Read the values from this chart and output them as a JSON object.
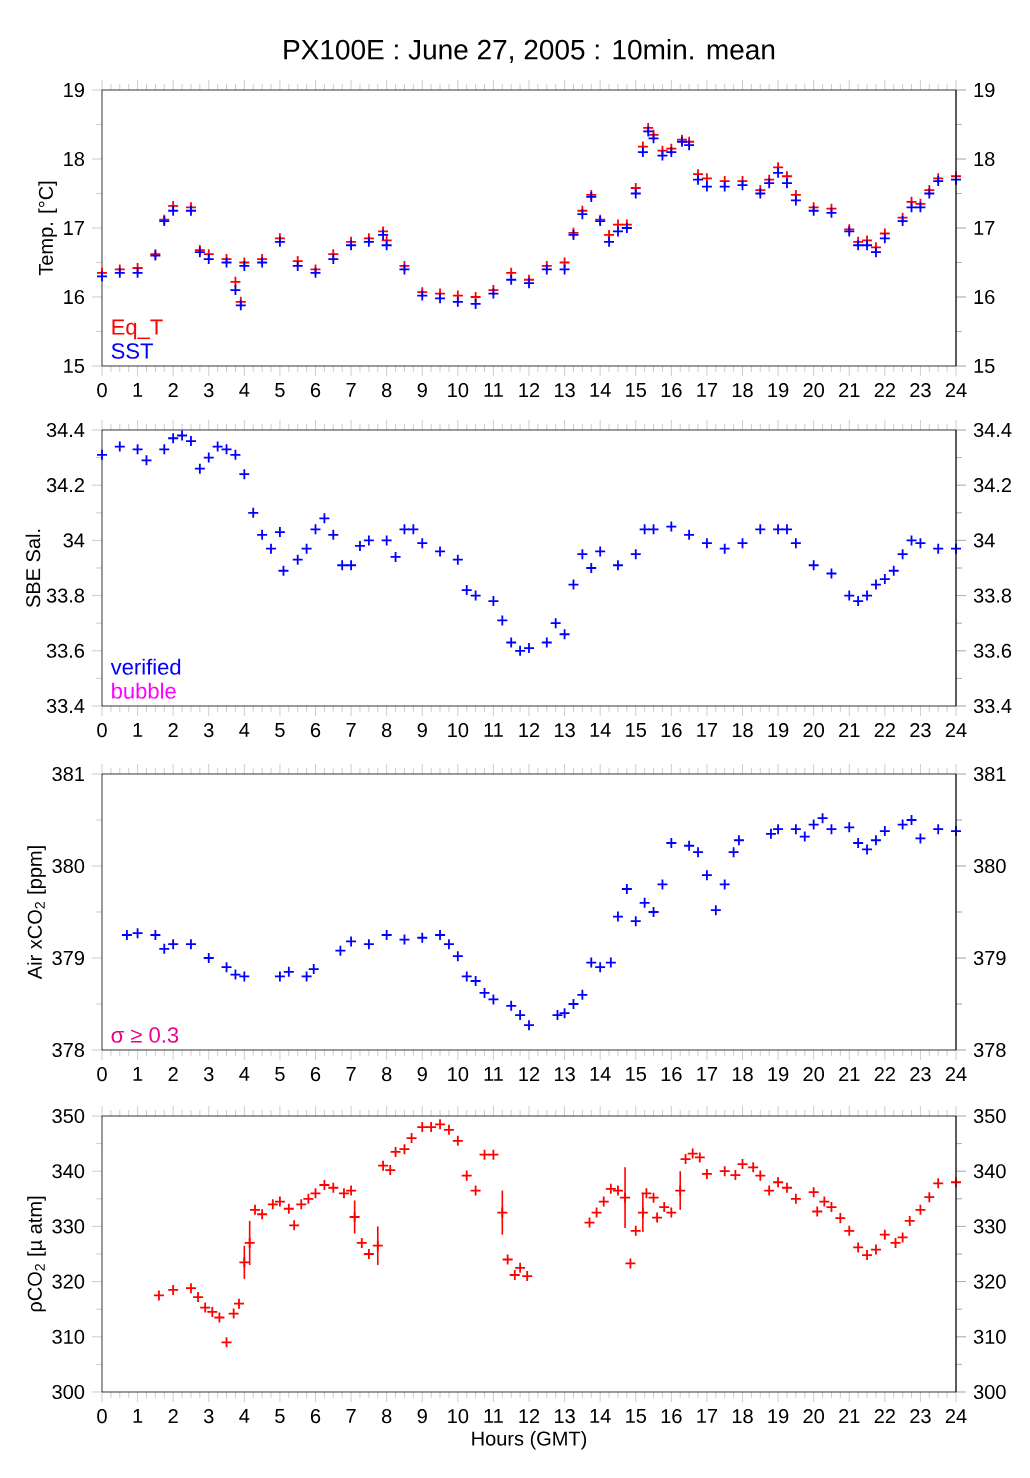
{
  "chart_data": [
    {
      "type": "scatter",
      "title": "PX100E : June 27, 2005 : 10min. mean",
      "ylabel": "Temp. [°C]",
      "marker": "cross",
      "legend": "bottom left",
      "xlim": [
        0,
        24
      ],
      "xticks": [
        0,
        1,
        2,
        3,
        4,
        5,
        6,
        7,
        8,
        9,
        10,
        11,
        12,
        13,
        14,
        15,
        16,
        17,
        18,
        19,
        20,
        21,
        22,
        23,
        24
      ],
      "ylim": [
        15,
        19
      ],
      "yticks": [
        15,
        16,
        17,
        18,
        19
      ],
      "y2lim": [
        15,
        19
      ],
      "y2ticks": [
        15,
        16,
        17,
        18,
        19
      ],
      "series": [
        {
          "name": "Eq_T",
          "color": "#ff0000",
          "x": [
            0,
            0.5,
            1,
            1.5,
            1.75,
            2,
            2.5,
            2.75,
            3,
            3.5,
            3.75,
            3.9,
            4,
            4.5,
            5,
            5.5,
            6,
            6.5,
            7,
            7.5,
            7.9,
            8,
            8.5,
            9,
            9.5,
            10,
            10.5,
            11,
            11.5,
            12,
            12.5,
            13,
            13.25,
            13.5,
            13.75,
            14,
            14.25,
            14.5,
            14.75,
            15,
            15.2,
            15.35,
            15.5,
            15.75,
            16,
            16.3,
            16.5,
            16.75,
            17,
            17.5,
            18,
            18.5,
            18.75,
            19,
            19.25,
            19.5,
            20,
            20.5,
            21,
            21.25,
            21.5,
            21.75,
            22,
            22.5,
            22.75,
            23,
            23.25,
            23.5,
            24
          ],
          "values": [
            16.35,
            16.4,
            16.42,
            16.62,
            17.12,
            17.32,
            17.3,
            16.68,
            16.62,
            16.55,
            16.22,
            15.93,
            16.5,
            16.55,
            16.85,
            16.52,
            16.4,
            16.62,
            16.8,
            16.85,
            16.95,
            16.82,
            16.45,
            16.07,
            16.05,
            16.02,
            16.0,
            16.1,
            16.35,
            16.25,
            16.45,
            16.5,
            16.93,
            17.25,
            17.48,
            17.12,
            16.9,
            17.05,
            17.05,
            17.58,
            18.18,
            18.45,
            18.35,
            18.12,
            18.15,
            18.28,
            18.25,
            17.78,
            17.72,
            17.68,
            17.68,
            17.55,
            17.7,
            17.88,
            17.75,
            17.48,
            17.3,
            17.28,
            16.98,
            16.8,
            16.82,
            16.72,
            16.92,
            17.15,
            17.38,
            17.35,
            17.55,
            17.72,
            17.75
          ]
        },
        {
          "name": "SST",
          "color": "#0000ff",
          "x": [
            0,
            0.5,
            1,
            1.5,
            1.75,
            2,
            2.5,
            2.75,
            3,
            3.5,
            3.75,
            3.9,
            4,
            4.5,
            5,
            5.5,
            6,
            6.5,
            7,
            7.5,
            7.9,
            8,
            8.5,
            9,
            9.5,
            10,
            10.5,
            11,
            11.5,
            12,
            12.5,
            13,
            13.25,
            13.5,
            13.75,
            14,
            14.25,
            14.5,
            14.75,
            15,
            15.2,
            15.35,
            15.5,
            15.75,
            16,
            16.3,
            16.5,
            16.75,
            17,
            17.5,
            18,
            18.5,
            18.75,
            19,
            19.25,
            19.5,
            20,
            20.5,
            21,
            21.25,
            21.5,
            21.75,
            22,
            22.5,
            22.75,
            23,
            23.25,
            23.5,
            24
          ],
          "values": [
            16.3,
            16.35,
            16.35,
            16.6,
            17.1,
            17.25,
            17.25,
            16.65,
            16.55,
            16.5,
            16.1,
            15.88,
            16.45,
            16.5,
            16.8,
            16.45,
            16.35,
            16.55,
            16.75,
            16.8,
            16.9,
            16.75,
            16.4,
            16.02,
            15.98,
            15.93,
            15.9,
            16.05,
            16.25,
            16.2,
            16.4,
            16.4,
            16.9,
            17.2,
            17.45,
            17.1,
            16.8,
            16.95,
            17.0,
            17.5,
            18.1,
            18.4,
            18.3,
            18.05,
            18.1,
            18.25,
            18.2,
            17.7,
            17.6,
            17.6,
            17.62,
            17.5,
            17.65,
            17.8,
            17.65,
            17.4,
            17.25,
            17.22,
            16.95,
            16.75,
            16.75,
            16.65,
            16.85,
            17.1,
            17.3,
            17.3,
            17.5,
            17.68,
            17.7
          ]
        }
      ]
    },
    {
      "type": "scatter",
      "ylabel": "SBE Sal.",
      "marker": "cross",
      "legend": "bottom left",
      "xlim": [
        0,
        24
      ],
      "xticks": [
        0,
        1,
        2,
        3,
        4,
        5,
        6,
        7,
        8,
        9,
        10,
        11,
        12,
        13,
        14,
        15,
        16,
        17,
        18,
        19,
        20,
        21,
        22,
        23,
        24
      ],
      "ylim": [
        33.4,
        34.4
      ],
      "yticks": [
        33.4,
        33.6,
        33.8,
        34,
        34.2,
        34.4
      ],
      "y2lim": [
        33.4,
        34.4
      ],
      "y2ticks": [
        33.4,
        33.6,
        33.8,
        34,
        34.2,
        34.4
      ],
      "series": [
        {
          "name": "verified",
          "color": "#0000ff",
          "x": [
            0,
            0.5,
            1,
            1.25,
            1.75,
            2,
            2.25,
            2.5,
            2.75,
            3,
            3.25,
            3.5,
            3.75,
            4,
            4.25,
            4.5,
            4.75,
            5,
            5.1,
            5.5,
            5.75,
            6,
            6.25,
            6.5,
            6.75,
            7,
            7.25,
            7.5,
            8,
            8.25,
            8.5,
            8.75,
            9,
            9.5,
            10,
            10.25,
            10.5,
            11,
            11.25,
            11.5,
            11.75,
            12,
            12.5,
            12.75,
            13,
            13.25,
            13.5,
            13.75,
            14,
            14.5,
            15,
            15.25,
            15.5,
            16,
            16.5,
            17,
            17.5,
            18,
            18.5,
            19,
            19.25,
            19.5,
            20,
            20.5,
            21,
            21.25,
            21.5,
            21.75,
            22,
            22.25,
            22.5,
            22.75,
            23,
            23.5,
            24
          ],
          "values": [
            34.31,
            34.34,
            34.33,
            34.29,
            34.33,
            34.37,
            34.38,
            34.36,
            34.26,
            34.3,
            34.34,
            34.33,
            34.31,
            34.24,
            34.1,
            34.02,
            33.97,
            34.03,
            33.89,
            33.93,
            33.97,
            34.04,
            34.08,
            34.02,
            33.91,
            33.91,
            33.98,
            34.0,
            34.0,
            33.94,
            34.04,
            34.04,
            33.99,
            33.96,
            33.93,
            33.82,
            33.8,
            33.78,
            33.71,
            33.63,
            33.6,
            33.61,
            33.63,
            33.7,
            33.66,
            33.84,
            33.95,
            33.9,
            33.96,
            33.91,
            33.95,
            34.04,
            34.04,
            34.05,
            34.02,
            33.99,
            33.97,
            33.99,
            34.04,
            34.04,
            34.04,
            33.99,
            33.91,
            33.88,
            33.8,
            33.78,
            33.8,
            33.84,
            33.86,
            33.89,
            33.95,
            34.0,
            33.99,
            33.97,
            33.97
          ]
        },
        {
          "name": "bubble",
          "color": "#ff00ff"
        }
      ]
    },
    {
      "type": "scatter",
      "ylabel": "Air xCO$_{2}$ [ppm]",
      "marker": "cross",
      "annotations": [
        "σ ≥ 0.3"
      ],
      "xlim": [
        0,
        24
      ],
      "xticks": [
        0,
        1,
        2,
        3,
        4,
        5,
        6,
        7,
        8,
        9,
        10,
        11,
        12,
        13,
        14,
        15,
        16,
        17,
        18,
        19,
        20,
        21,
        22,
        23,
        24
      ],
      "ylim": [
        378,
        381
      ],
      "yticks": [
        378,
        379,
        380,
        381
      ],
      "y2lim": [
        378,
        381
      ],
      "y2ticks": [
        378,
        379,
        380,
        381
      ],
      "series": [
        {
          "color": "#0000ff",
          "x": [
            0.7,
            1,
            1.5,
            1.75,
            2,
            2.5,
            3,
            3.5,
            3.75,
            4,
            5,
            5.25,
            5.75,
            5.95,
            6.7,
            7,
            7.5,
            8,
            8.5,
            9,
            9.5,
            9.75,
            10,
            10.25,
            10.5,
            10.75,
            11,
            11.5,
            11.75,
            12,
            12.8,
            13,
            13.25,
            13.5,
            13.75,
            14,
            14.3,
            14.5,
            14.75,
            15,
            15.25,
            15.5,
            15.75,
            16,
            16.5,
            16.75,
            17,
            17.25,
            17.5,
            17.75,
            17.9,
            18.8,
            19,
            19.5,
            19.75,
            20,
            20.25,
            20.5,
            21,
            21.25,
            21.5,
            21.75,
            22,
            22.5,
            22.75,
            23,
            23.5,
            24
          ],
          "values": [
            379.25,
            379.27,
            379.25,
            379.1,
            379.15,
            379.15,
            379.0,
            378.9,
            378.82,
            378.8,
            378.8,
            378.85,
            378.8,
            378.88,
            379.08,
            379.18,
            379.15,
            379.25,
            379.2,
            379.22,
            379.25,
            379.15,
            379.02,
            378.8,
            378.75,
            378.62,
            378.55,
            378.48,
            378.38,
            378.27,
            378.38,
            378.4,
            378.5,
            378.6,
            378.95,
            378.9,
            378.95,
            379.45,
            379.75,
            379.4,
            379.6,
            379.5,
            379.8,
            380.25,
            380.22,
            380.15,
            379.9,
            379.52,
            379.8,
            380.15,
            380.28,
            380.35,
            380.4,
            380.4,
            380.32,
            380.45,
            380.52,
            380.4,
            380.42,
            380.25,
            380.18,
            380.28,
            380.38,
            380.45,
            380.5,
            380.3,
            380.4,
            380.38
          ]
        }
      ]
    },
    {
      "type": "scatter",
      "ylabel": "ρCO$_{2}$ [µ atm]",
      "xlabel": "Hours (GMT)",
      "marker": "cross",
      "xlim": [
        0,
        24
      ],
      "xticks": [
        0,
        1,
        2,
        3,
        4,
        5,
        6,
        7,
        8,
        9,
        10,
        11,
        12,
        13,
        14,
        15,
        16,
        17,
        18,
        19,
        20,
        21,
        22,
        23,
        24
      ],
      "ylim": [
        300,
        350
      ],
      "yticks": [
        300,
        310,
        320,
        330,
        340,
        350
      ],
      "y2lim": [
        300,
        350
      ],
      "y2ticks": [
        300,
        310,
        320,
        330,
        340,
        350
      ],
      "series": [
        {
          "color": "#ff0000",
          "x": [
            1.6,
            2.0,
            2.5,
            2.7,
            2.9,
            3.1,
            3.3,
            3.5,
            3.7,
            3.85,
            4.0,
            4.15,
            4.3,
            4.5,
            4.8,
            5.0,
            5.25,
            5.4,
            5.6,
            5.8,
            6.0,
            6.25,
            6.5,
            6.8,
            7.0,
            7.1,
            7.3,
            7.5,
            7.75,
            7.9,
            8.1,
            8.25,
            8.5,
            8.7,
            9.0,
            9.25,
            9.5,
            9.75,
            10.0,
            10.25,
            10.5,
            10.75,
            11.0,
            11.25,
            11.4,
            11.6,
            11.75,
            11.95,
            13.7,
            13.9,
            14.1,
            14.3,
            14.5,
            14.7,
            14.85,
            15.0,
            15.2,
            15.3,
            15.5,
            15.6,
            15.8,
            16.0,
            16.25,
            16.4,
            16.6,
            16.8,
            17.0,
            17.5,
            17.8,
            18.0,
            18.3,
            18.5,
            18.75,
            19.0,
            19.25,
            19.5,
            20.0,
            20.1,
            20.3,
            20.5,
            20.75,
            21.0,
            21.25,
            21.5,
            21.75,
            22.0,
            22.3,
            22.5,
            22.7,
            23.0,
            23.25,
            23.5,
            24.0
          ],
          "values": [
            317.5,
            318.5,
            318.8,
            317.2,
            315.3,
            314.5,
            313.5,
            309,
            314.2,
            316,
            323.5,
            327,
            333,
            332.2,
            334,
            334.5,
            333.2,
            330.2,
            334,
            335,
            336,
            337.5,
            337,
            336,
            336.5,
            331.7,
            327,
            325,
            326.5,
            341,
            340.2,
            343.5,
            344,
            346,
            348,
            348,
            348.5,
            347.5,
            345.5,
            339.2,
            336.5,
            343,
            343,
            332.5,
            324,
            321.2,
            322.5,
            321,
            330.7,
            332.5,
            334.5,
            336.8,
            336.5,
            335.2,
            323.3,
            329.2,
            332.5,
            336,
            335.2,
            331.6,
            333.5,
            332.5,
            336.5,
            342.2,
            343.2,
            342.5,
            339.5,
            340,
            339.3,
            341.3,
            340.7,
            339.2,
            336.5,
            338,
            337,
            335,
            336.2,
            332.7,
            334.5,
            333.5,
            331.5,
            329.2,
            326.2,
            324.8,
            325.8,
            328.5,
            327,
            328,
            331,
            333,
            335.3,
            337.8,
            338
          ],
          "errors": [
            null,
            null,
            null,
            null,
            null,
            null,
            null,
            null,
            null,
            null,
            3,
            4,
            null,
            null,
            null,
            null,
            null,
            null,
            null,
            null,
            null,
            null,
            null,
            null,
            null,
            3,
            null,
            null,
            3.5,
            null,
            null,
            null,
            null,
            null,
            null,
            null,
            null,
            null,
            null,
            null,
            null,
            null,
            null,
            4,
            null,
            null,
            null,
            null,
            null,
            null,
            null,
            null,
            null,
            5.5,
            null,
            null,
            3.5,
            null,
            null,
            null,
            null,
            null,
            3.5,
            null,
            null,
            null,
            null,
            null,
            null,
            null,
            null,
            null,
            null,
            null,
            null,
            null,
            null,
            null,
            null,
            null,
            null,
            null,
            null,
            null,
            null,
            null,
            null,
            null,
            null,
            null,
            null,
            null,
            null
          ]
        }
      ]
    }
  ]
}
